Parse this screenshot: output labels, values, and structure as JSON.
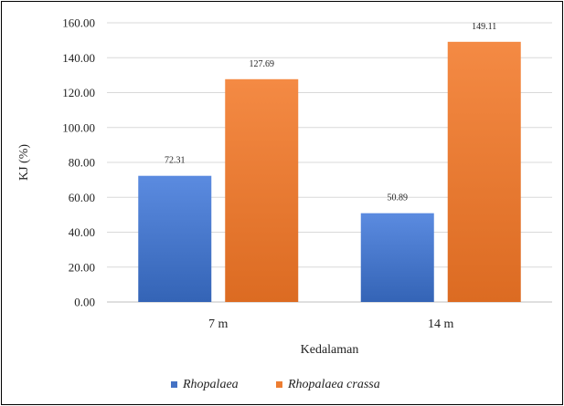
{
  "chart_data": {
    "type": "bar",
    "title": "",
    "xlabel": "Kedalaman",
    "ylabel": "KJ (%)",
    "categories": [
      "7 m",
      "14 m"
    ],
    "ylim": [
      0,
      160
    ],
    "yticks": [
      "0.00",
      "20.00",
      "40.00",
      "60.00",
      "80.00",
      "100.00",
      "120.00",
      "140.00",
      "160.00"
    ],
    "grid": true,
    "legend_position": "bottom",
    "series": [
      {
        "name": "Rhopalaea",
        "values": [
          72.31,
          50.89
        ],
        "labels": [
          "72.31",
          "50.89"
        ],
        "color": "#4472c4"
      },
      {
        "name": "Rhopalaea crassa",
        "values": [
          127.69,
          149.11
        ],
        "labels": [
          "127.69",
          "149.11"
        ],
        "color": "#ed7d31"
      }
    ]
  }
}
